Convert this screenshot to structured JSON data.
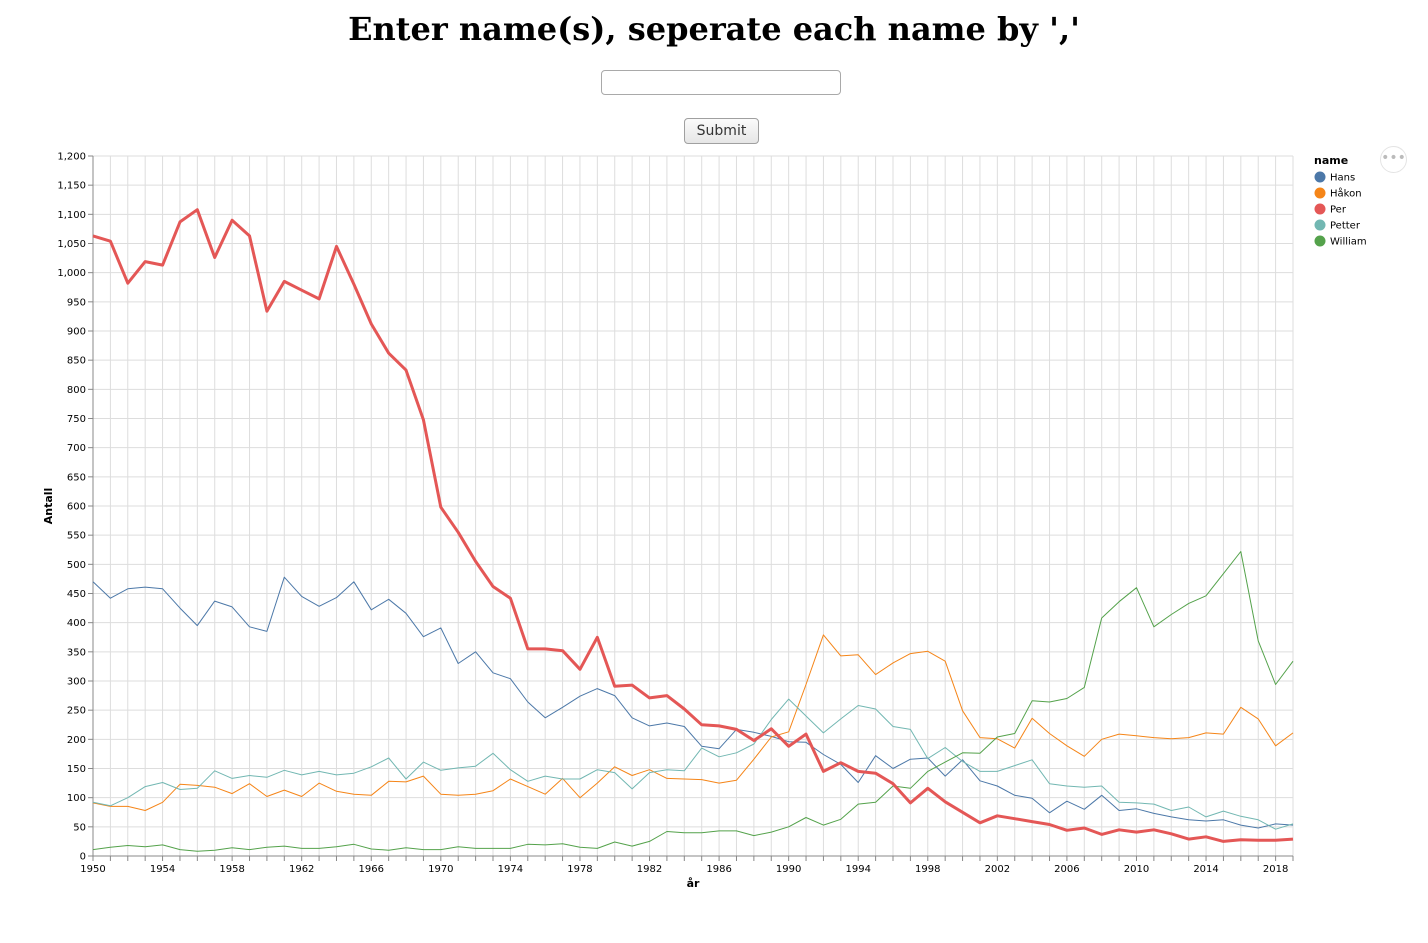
{
  "header": {
    "title": "Enter name(s), seperate each name by ','"
  },
  "search": {
    "value": "",
    "placeholder": ""
  },
  "form": {
    "submit_label": "Submit"
  },
  "actions_menu": {
    "icon": "more-horizontal-icon",
    "glyph": "•••"
  },
  "legend": {
    "title": "name",
    "placement": "right"
  },
  "colors": {
    "Hans": "#4c78a8",
    "Håkon": "#f58518",
    "Per": "#e45756",
    "Petter": "#72b7b2",
    "William": "#54a24b",
    "grid": "#dddddd",
    "axis": "#888888"
  },
  "chart_data": {
    "type": "line",
    "xlabel": "år",
    "ylabel": "Antall",
    "xlim": [
      1950,
      2019
    ],
    "ylim": [
      0,
      1200
    ],
    "grid": true,
    "legend_placement": "right",
    "highlighted_series": "Per",
    "x_ticks": [
      1950,
      1954,
      1958,
      1962,
      1966,
      1970,
      1974,
      1978,
      1982,
      1986,
      1990,
      1994,
      1998,
      2002,
      2006,
      2010,
      2014,
      2018
    ],
    "y_ticks": [
      0,
      50,
      100,
      150,
      200,
      250,
      300,
      350,
      400,
      450,
      500,
      550,
      600,
      650,
      700,
      750,
      800,
      850,
      900,
      950,
      1000,
      1050,
      1100,
      1150,
      1200
    ],
    "y_tick_labels": [
      "0",
      "50",
      "100",
      "150",
      "200",
      "250",
      "300",
      "350",
      "400",
      "450",
      "500",
      "550",
      "600",
      "650",
      "700",
      "750",
      "800",
      "850",
      "900",
      "950",
      "1,000",
      "1,050",
      "1,100",
      "1,150",
      "1,200"
    ],
    "x": [
      1950,
      1951,
      1952,
      1953,
      1954,
      1955,
      1956,
      1957,
      1958,
      1959,
      1960,
      1961,
      1962,
      1963,
      1964,
      1965,
      1966,
      1967,
      1968,
      1969,
      1970,
      1971,
      1972,
      1973,
      1974,
      1975,
      1976,
      1977,
      1978,
      1979,
      1980,
      1981,
      1982,
      1983,
      1984,
      1985,
      1986,
      1987,
      1988,
      1989,
      1990,
      1991,
      1992,
      1993,
      1994,
      1995,
      1996,
      1997,
      1998,
      1999,
      2000,
      2001,
      2002,
      2003,
      2004,
      2005,
      2006,
      2007,
      2008,
      2009,
      2010,
      2011,
      2012,
      2013,
      2014,
      2015,
      2016,
      2017,
      2018,
      2019
    ],
    "series": [
      {
        "name": "Hans",
        "values": [
          470,
          442,
          458,
          461,
          458,
          425,
          395,
          437,
          427,
          393,
          385,
          478,
          445,
          428,
          443,
          470,
          422,
          440,
          416,
          376,
          391,
          330,
          350,
          314,
          304,
          264,
          237,
          255,
          274,
          287,
          275,
          237,
          223,
          228,
          222,
          188,
          184,
          217,
          212,
          205,
          196,
          195,
          174,
          157,
          126,
          172,
          150,
          166,
          168,
          137,
          165,
          129,
          120,
          104,
          99,
          74,
          94,
          80,
          104,
          78,
          81,
          73,
          67,
          62,
          60,
          62,
          53,
          48,
          55,
          53
        ]
      },
      {
        "name": "Håkon",
        "values": [
          91,
          85,
          85,
          78,
          92,
          123,
          121,
          118,
          107,
          124,
          102,
          113,
          102,
          125,
          111,
          106,
          104,
          128,
          127,
          137,
          106,
          104,
          106,
          112,
          132,
          119,
          106,
          133,
          100,
          125,
          153,
          138,
          148,
          133,
          132,
          131,
          125,
          130,
          166,
          204,
          213,
          294,
          379,
          343,
          345,
          311,
          331,
          347,
          351,
          334,
          249,
          203,
          201,
          185,
          236,
          210,
          189,
          171,
          200,
          209,
          206,
          203,
          201,
          203,
          211,
          209,
          255,
          235,
          189,
          211
        ]
      },
      {
        "name": "Per",
        "values": [
          1063,
          1054,
          982,
          1019,
          1013,
          1087,
          1108,
          1026,
          1090,
          1063,
          934,
          985,
          970,
          955,
          1045,
          980,
          912,
          862,
          833,
          748,
          598,
          555,
          505,
          462,
          442,
          355,
          355,
          352,
          320,
          375,
          291,
          293,
          271,
          275,
          252,
          225,
          223,
          217,
          198,
          218,
          188,
          209,
          145,
          160,
          145,
          142,
          124,
          91,
          116,
          93,
          75,
          57,
          69,
          64,
          59,
          54,
          44,
          48,
          37,
          45,
          41,
          45,
          38,
          29,
          33,
          25,
          28,
          27,
          27,
          29
        ]
      },
      {
        "name": "Petter",
        "values": [
          92,
          86,
          100,
          119,
          126,
          114,
          116,
          146,
          133,
          138,
          135,
          147,
          139,
          145,
          139,
          142,
          153,
          168,
          132,
          161,
          147,
          151,
          154,
          176,
          148,
          128,
          137,
          132,
          132,
          148,
          143,
          115,
          143,
          148,
          146,
          185,
          170,
          177,
          192,
          234,
          269,
          240,
          211,
          235,
          258,
          252,
          222,
          217,
          167,
          186,
          162,
          145,
          145,
          155,
          165,
          124,
          120,
          118,
          120,
          92,
          91,
          89,
          78,
          84,
          67,
          77,
          68,
          62,
          46,
          55
        ]
      },
      {
        "name": "William",
        "values": [
          11,
          15,
          18,
          16,
          19,
          11,
          8,
          10,
          14,
          11,
          15,
          17,
          13,
          13,
          16,
          20,
          12,
          10,
          14,
          11,
          11,
          16,
          13,
          13,
          13,
          20,
          19,
          21,
          15,
          13,
          24,
          17,
          25,
          42,
          40,
          40,
          43,
          43,
          35,
          41,
          50,
          66,
          53,
          63,
          89,
          92,
          120,
          116,
          145,
          161,
          177,
          176,
          204,
          210,
          266,
          264,
          270,
          289,
          408,
          436,
          460,
          393,
          414,
          433,
          446,
          484,
          522,
          369,
          294,
          334
        ]
      }
    ]
  }
}
